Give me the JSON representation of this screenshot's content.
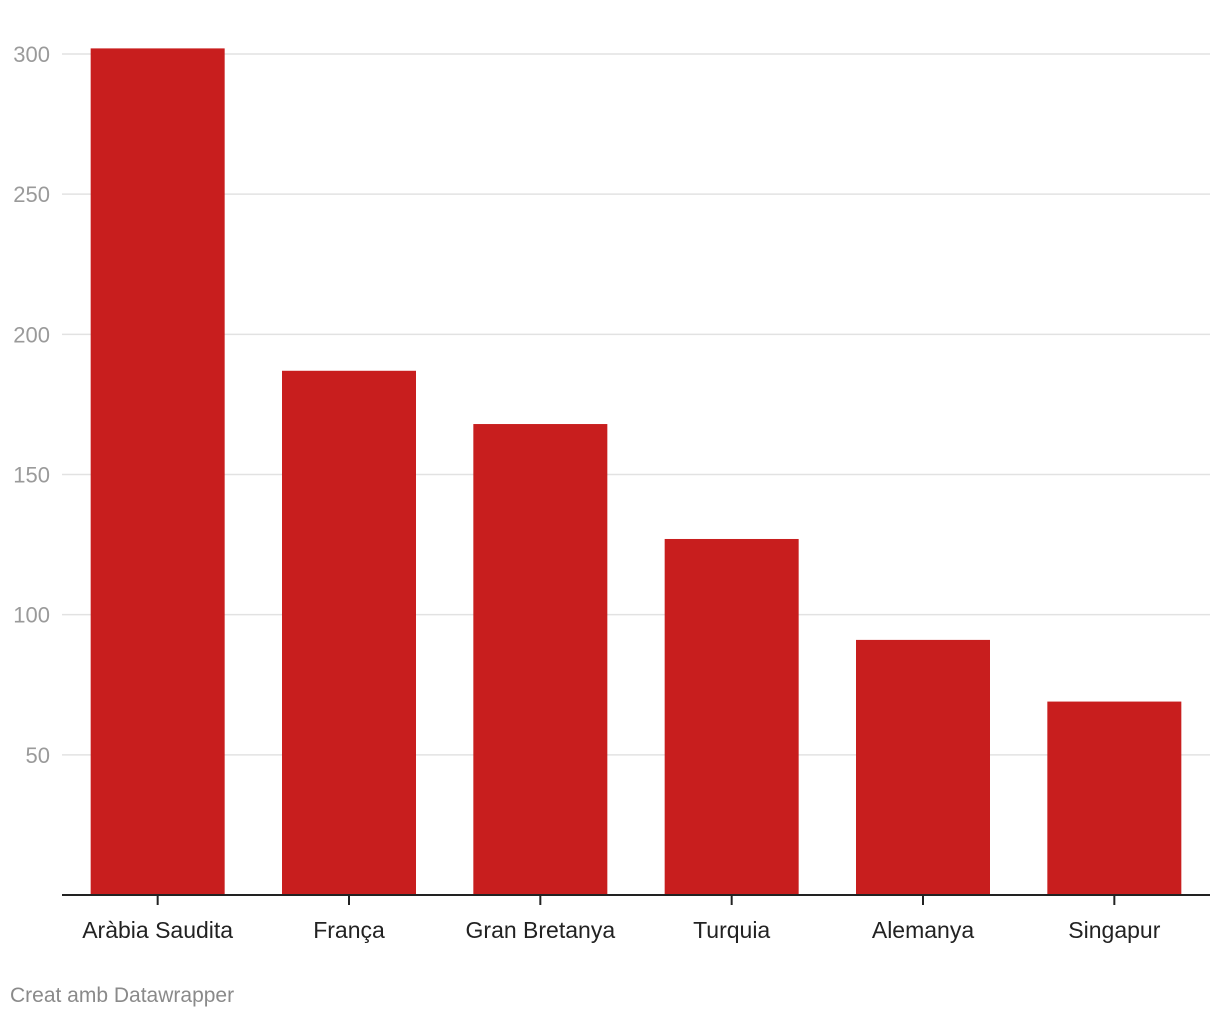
{
  "chart_data": {
    "type": "bar",
    "title": "",
    "xlabel": "",
    "ylabel": "",
    "categories": [
      "Aràbia Saudita",
      "França",
      "Gran Bretanya",
      "Turquia",
      "Alemanya",
      "Singapur"
    ],
    "values": [
      302,
      187,
      168,
      127,
      91,
      69
    ],
    "ylim": [
      0,
      300
    ],
    "yticks": [
      50,
      100,
      150,
      200,
      250,
      300
    ],
    "grid": true,
    "bar_color": "#c81e1e",
    "legend": "none"
  },
  "footer": {
    "credit": "Creat amb Datawrapper"
  }
}
